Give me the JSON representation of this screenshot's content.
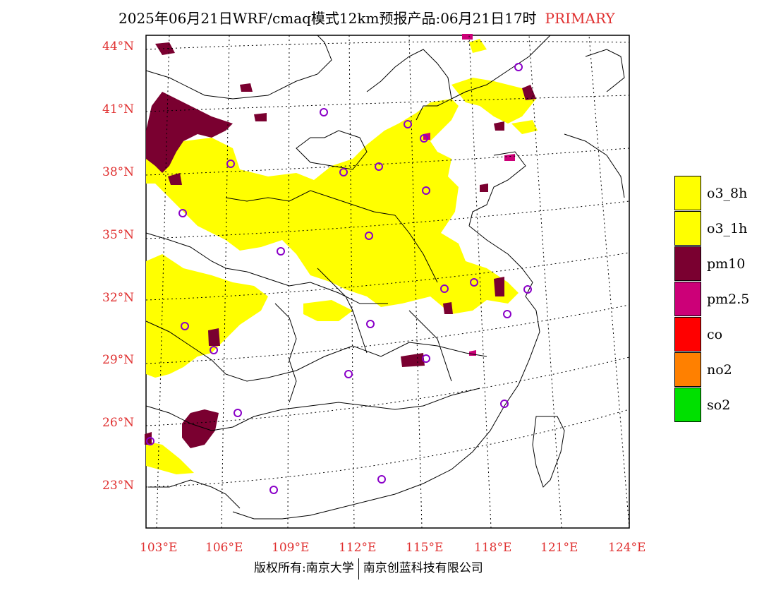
{
  "title": {
    "main": "2025年06月21日WRF/cmaq模式12km预报产品:06月21日17时",
    "tag": "PRIMARY"
  },
  "lat_labels": [
    "44°N",
    "41°N",
    "38°N",
    "35°N",
    "32°N",
    "29°N",
    "26°N",
    "23°N"
  ],
  "lon_labels": [
    "103°E",
    "106°E",
    "109°E",
    "112°E",
    "115°E",
    "118°E",
    "121°E",
    "124°E"
  ],
  "legend": [
    {
      "label": "o3_8h",
      "color": "#ffff00"
    },
    {
      "label": "o3_1h",
      "color": "#ffff00"
    },
    {
      "label": "pm10",
      "color": "#7a0030"
    },
    {
      "label": "pm2.5",
      "color": "#cc0078"
    },
    {
      "label": "co",
      "color": "#ff0000"
    },
    {
      "label": "no2",
      "color": "#ff8000"
    },
    {
      "label": "so2",
      "color": "#00e000"
    }
  ],
  "footer": {
    "left": "版权所有:南京大学",
    "right": "南京创蓝科技有限公司"
  }
}
